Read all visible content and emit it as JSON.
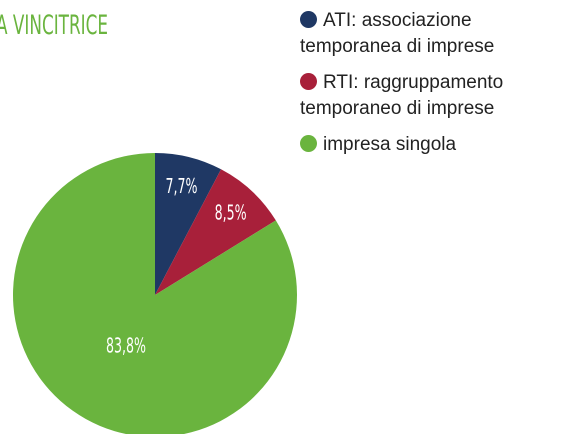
{
  "chart_data": {
    "type": "pie",
    "title": "A VINCITRICE",
    "categories": [
      "ATI: associazione temporanea di imprese",
      "RTI: raggruppamento temporaneo di imprese",
      "impresa singola"
    ],
    "values": [
      7.7,
      8.5,
      83.8
    ],
    "value_labels": [
      "7,7%",
      "8,5%",
      "83,8%"
    ],
    "colors": [
      "#1f3864",
      "#a8203a",
      "#6ab43e"
    ]
  }
}
